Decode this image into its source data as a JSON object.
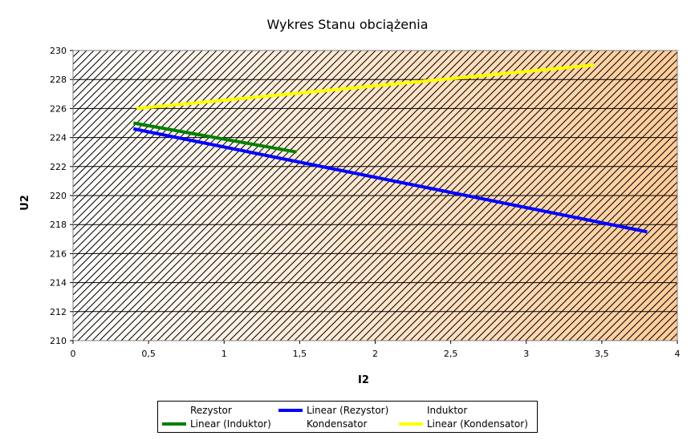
{
  "chart_data": {
    "type": "scatter",
    "title": "Wykres Stanu obciążenia",
    "xlabel": "I2",
    "ylabel": "U2",
    "xlim": [
      0,
      4
    ],
    "ylim": [
      210,
      230
    ],
    "x_ticks": [
      "0",
      "0,5",
      "1",
      "1,5",
      "2",
      "2,5",
      "3",
      "3,5",
      "4"
    ],
    "y_ticks": [
      "210",
      "212",
      "214",
      "216",
      "218",
      "220",
      "222",
      "224",
      "226",
      "228",
      "230"
    ],
    "grid": true,
    "legend_position": "bottom",
    "background": {
      "gradient_from": "#ffffff",
      "gradient_to": "#ffcc99",
      "hatch": "diagonal"
    },
    "series": [
      {
        "name": "Rezystor",
        "kind": "points",
        "color": "#000000",
        "x": [],
        "y": []
      },
      {
        "name": "Linear (Rezystor)",
        "kind": "line",
        "color": "#0000ff",
        "x": [
          0.4,
          3.8
        ],
        "y": [
          224.6,
          217.5
        ]
      },
      {
        "name": "Induktor",
        "kind": "points",
        "color": "#000000",
        "x": [],
        "y": []
      },
      {
        "name": "Linear (Induktor)",
        "kind": "line",
        "color": "#008000",
        "x": [
          0.4,
          1.48
        ],
        "y": [
          225.0,
          223.0
        ]
      },
      {
        "name": "Kondensator",
        "kind": "points",
        "color": "#000000",
        "x": [],
        "y": []
      },
      {
        "name": "Linear (Kondensator)",
        "kind": "line",
        "color": "#ffff00",
        "x": [
          0.42,
          3.45
        ],
        "y": [
          226.0,
          229.0
        ]
      }
    ]
  }
}
